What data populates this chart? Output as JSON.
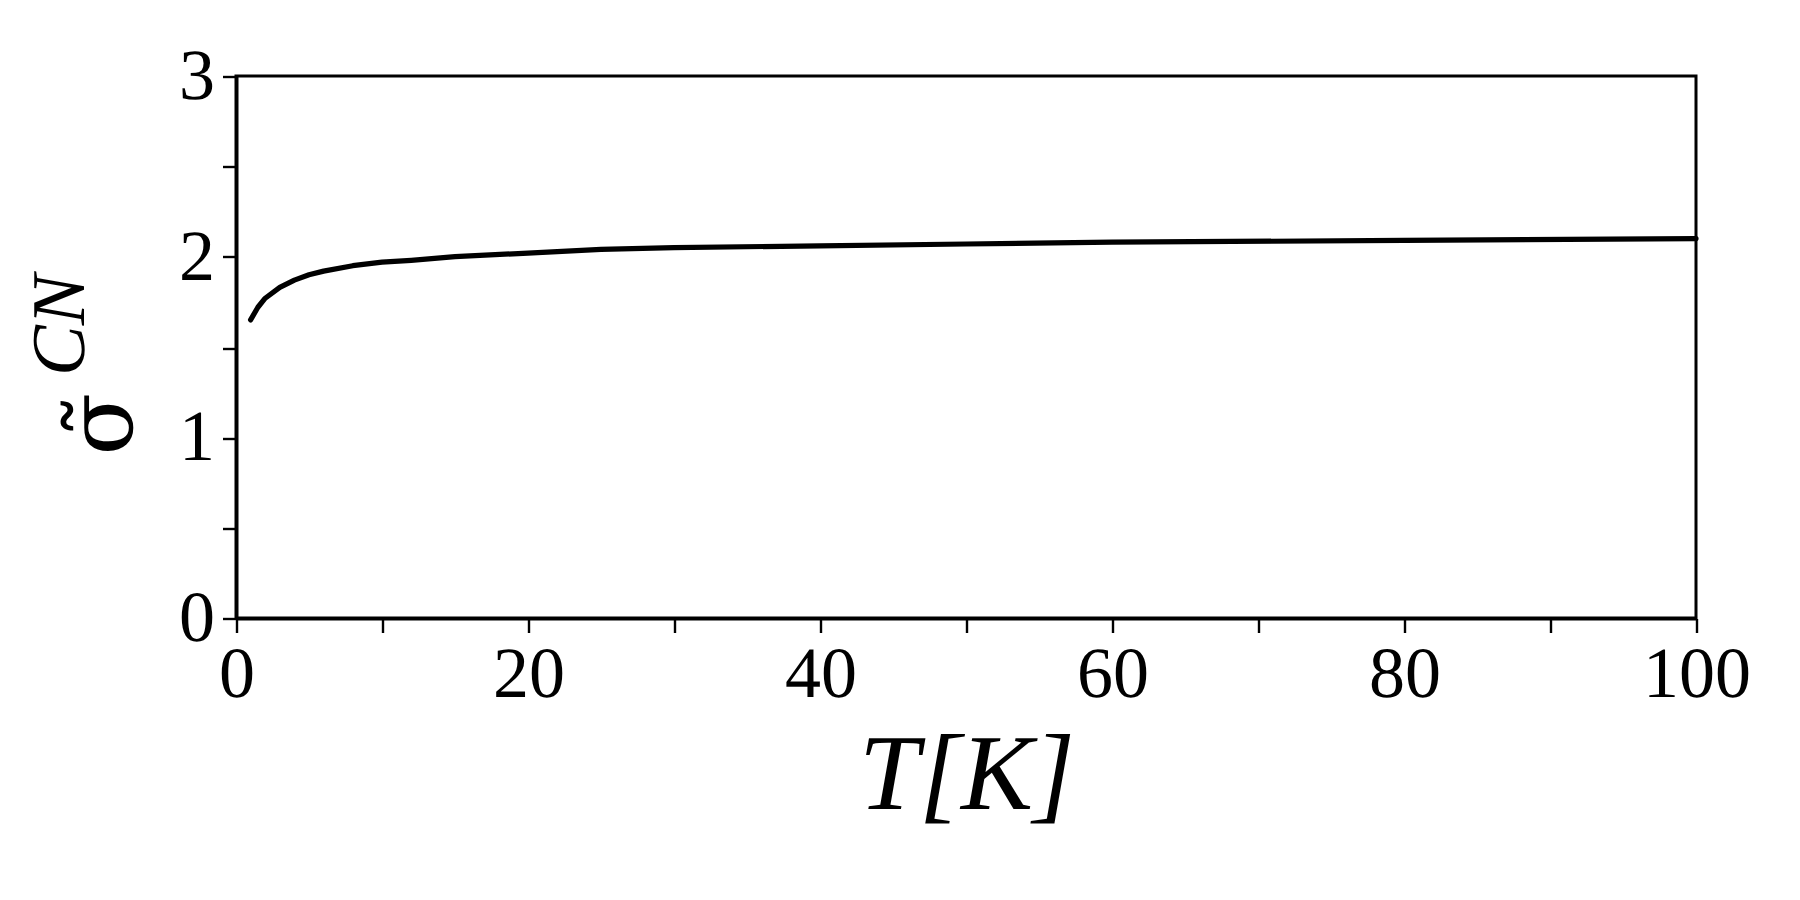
{
  "chart_data": {
    "type": "line",
    "xlabel": "T[K]",
    "ylabel": "σ̃$^{CN}$",
    "x": [
      1,
      1.5,
      2,
      3,
      4,
      5,
      6,
      8,
      10,
      12,
      15,
      20,
      25,
      30,
      40,
      50,
      60,
      80,
      100
    ],
    "values": [
      1.65,
      1.72,
      1.77,
      1.83,
      1.87,
      1.9,
      1.92,
      1.95,
      1.97,
      1.98,
      2.0,
      2.02,
      2.04,
      2.05,
      2.06,
      2.07,
      2.08,
      2.09,
      2.1
    ],
    "color": "#000000",
    "line_style": "solid",
    "grid": false,
    "xlim": [
      0,
      100
    ],
    "ylim": [
      0,
      3
    ],
    "xticks": [
      0,
      {
        "value": 10,
        "label": null
      },
      20,
      {
        "value": 30,
        "label": null
      },
      40,
      {
        "value": 50,
        "label": null
      },
      60,
      {
        "value": 70,
        "label": null
      },
      80,
      {
        "value": 90,
        "label": null
      },
      100
    ],
    "yticks": [
      0,
      {
        "value": 0.5,
        "label": null
      },
      1,
      {
        "value": 1.5,
        "label": null
      },
      2,
      {
        "value": 2.5,
        "label": null
      },
      3
    ]
  }
}
